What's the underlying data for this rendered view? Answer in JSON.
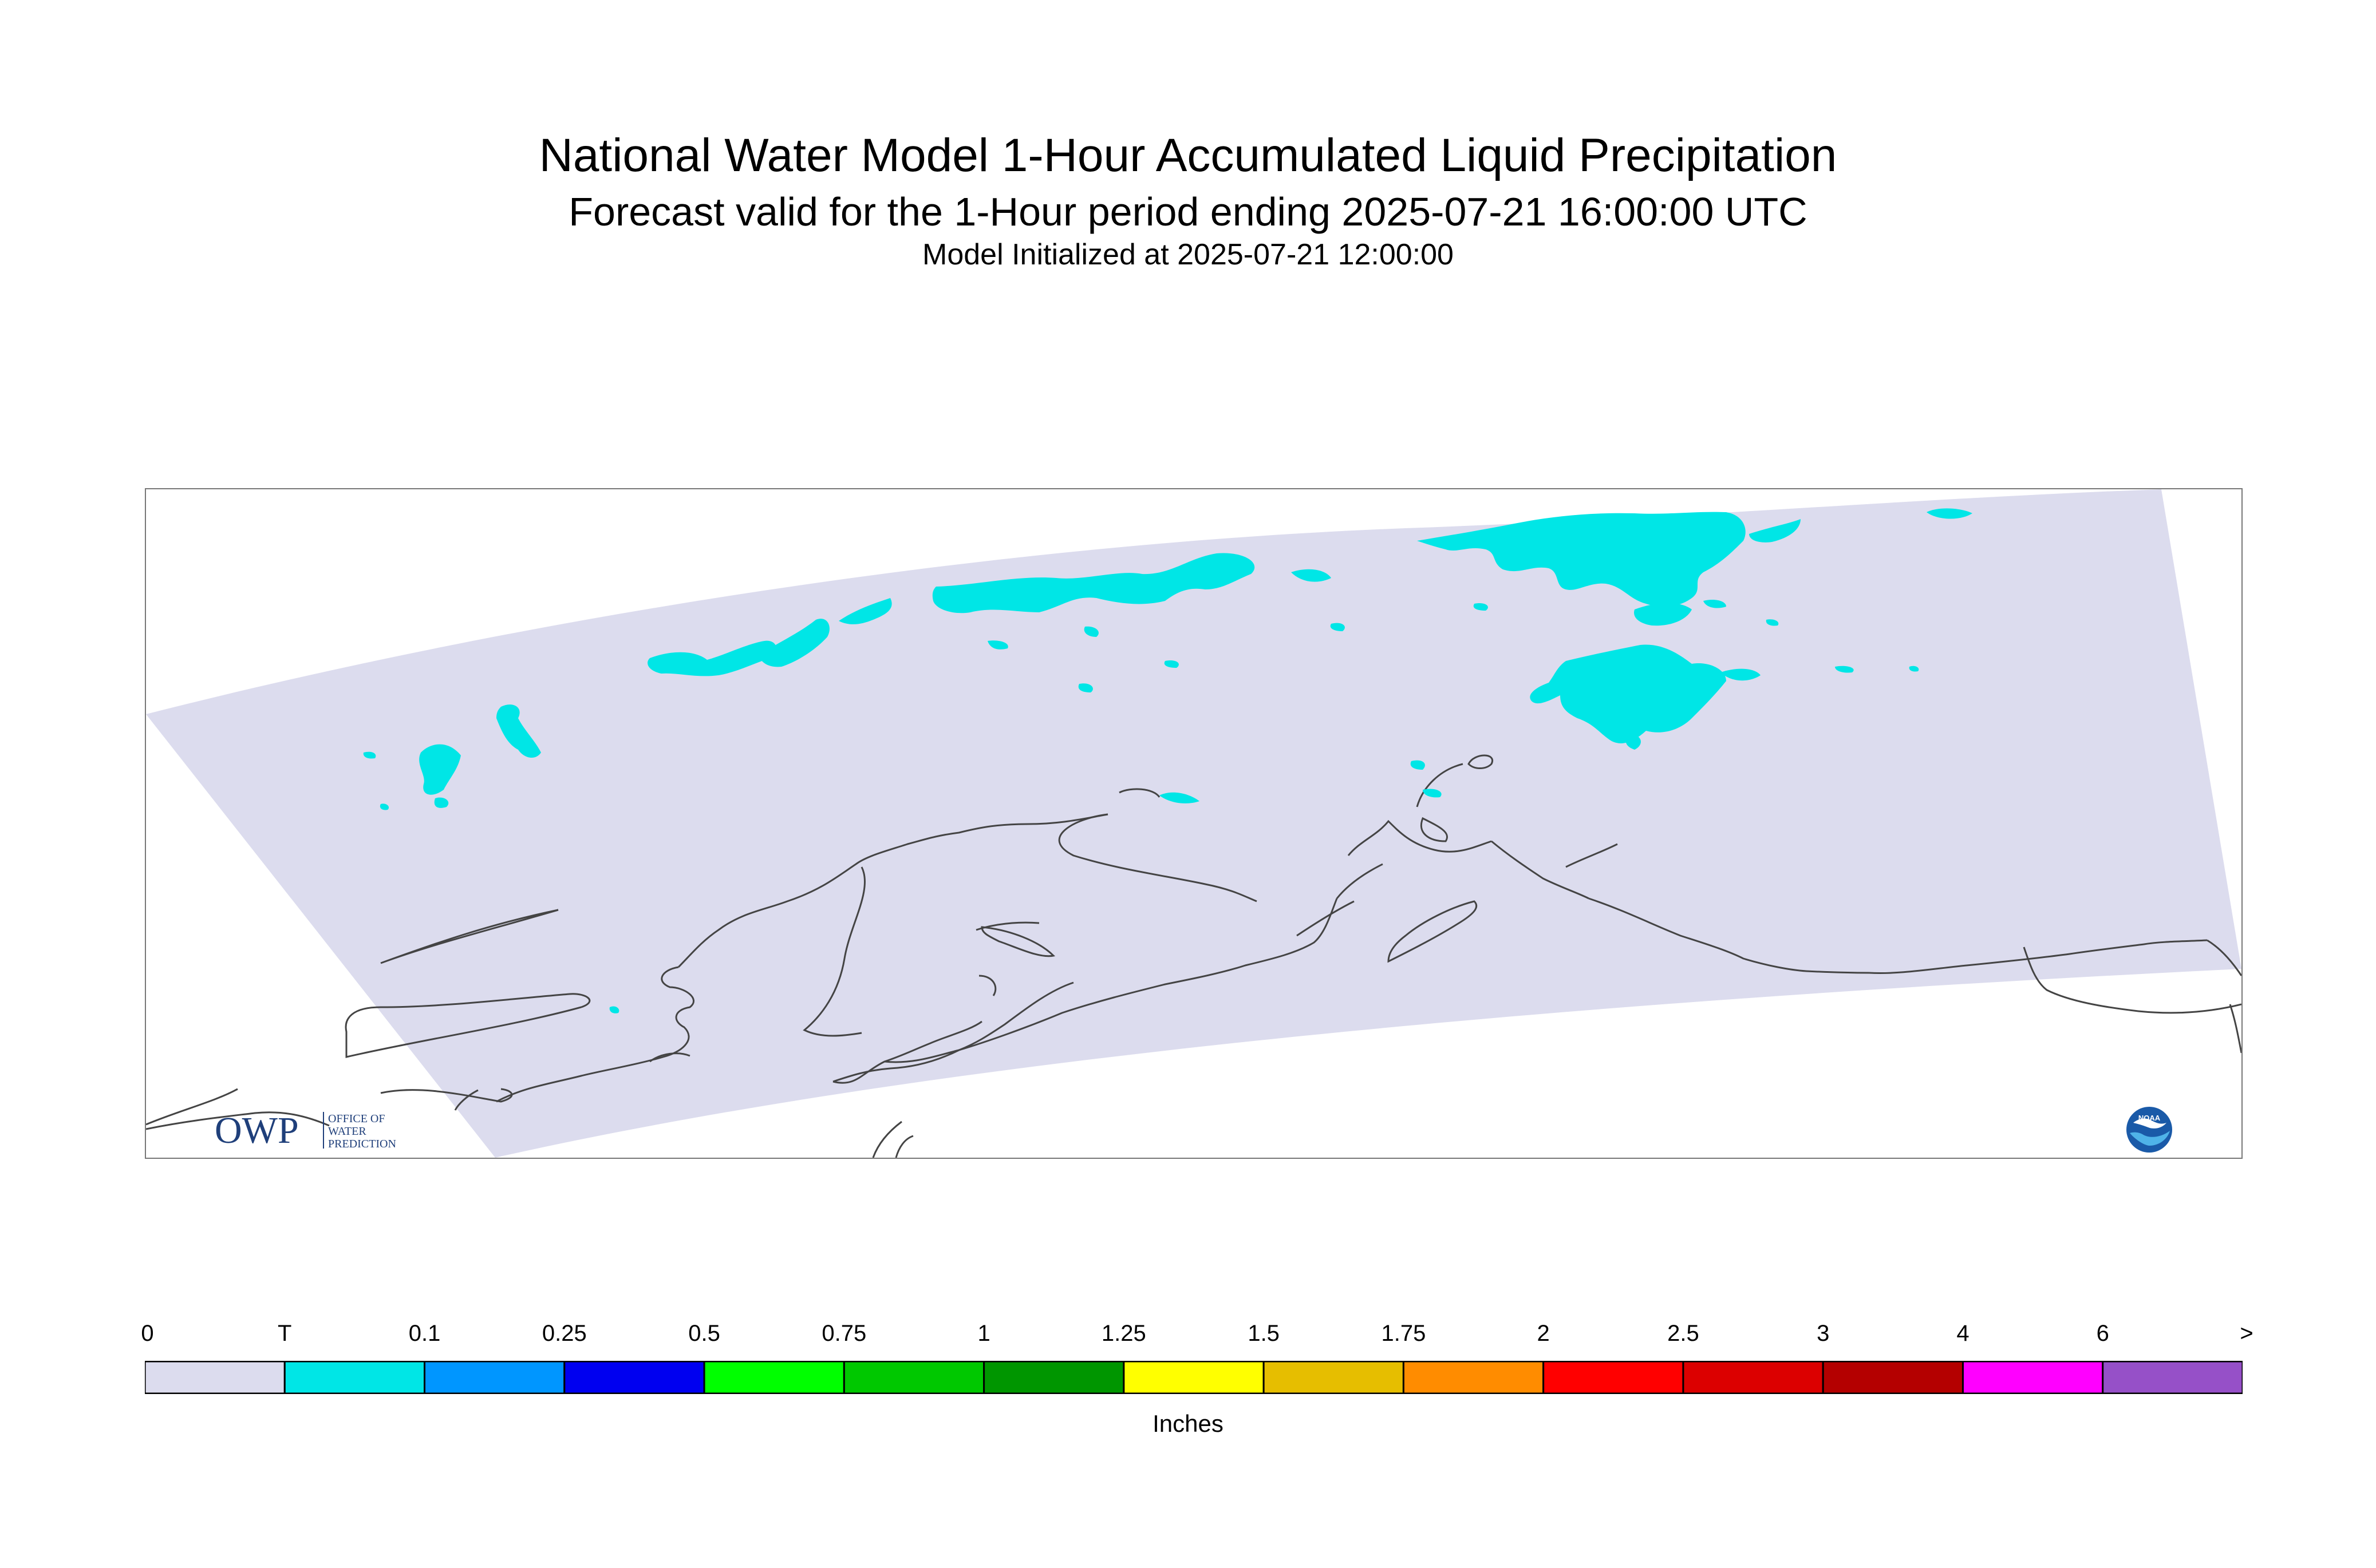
{
  "header": {
    "title": "National Water Model 1-Hour Accumulated Liquid Precipitation",
    "subtitle": "Forecast valid for the 1-Hour period ending 2025-07-21 16:00:00 UTC",
    "init_line": "Model Initialized at 2025-07-21 12:00:00"
  },
  "map": {
    "region_fill": "#dcdcee",
    "trace_color": "#00e5e5",
    "coast_color": "#444444"
  },
  "logos": {
    "owp_mark": "OWP",
    "owp_text": [
      "OFFICE OF",
      "WATER",
      "PREDICTION"
    ],
    "noaa_text": "NOAA"
  },
  "legend": {
    "units": "Inches",
    "ticks": [
      "0",
      "T",
      "0.1",
      "0.25",
      "0.5",
      "0.75",
      "1",
      "1.25",
      "1.5",
      "1.75",
      "2",
      "2.5",
      "3",
      "4",
      "6",
      ">"
    ],
    "colors": [
      "#dcdcee",
      "#00e6e6",
      "#0096ff",
      "#0000f0",
      "#00ff00",
      "#00c800",
      "#009600",
      "#ffff00",
      "#e6be00",
      "#ff8c00",
      "#ff0000",
      "#dc0000",
      "#b40000",
      "#ff00ff",
      "#9650c8"
    ]
  }
}
